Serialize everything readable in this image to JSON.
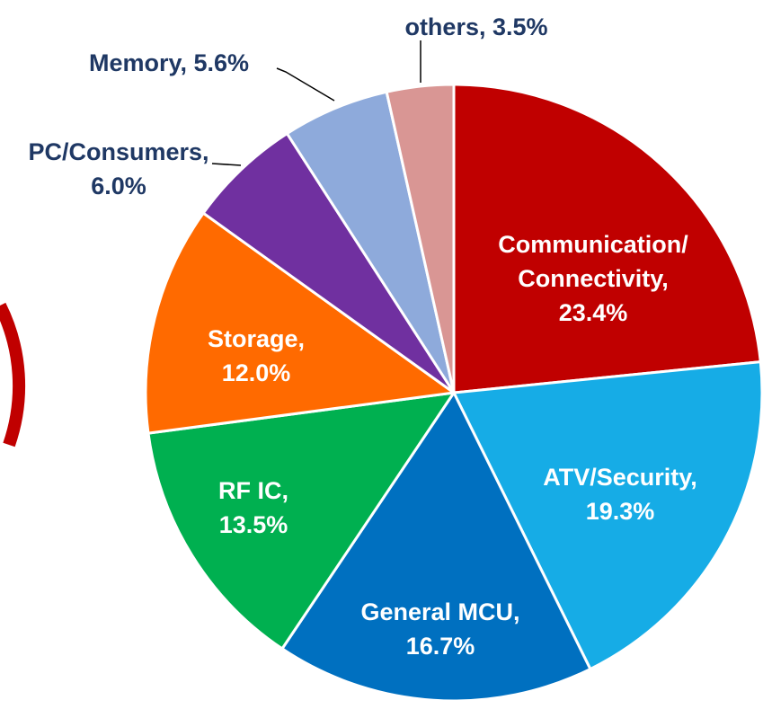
{
  "chart_data": {
    "type": "pie",
    "categories": [
      "Communication/ Connectivity,",
      "ATV/Security,",
      "General MCU,",
      "RF IC,",
      "Storage,",
      "PC/Consumers,",
      "Memory,",
      "others,"
    ],
    "values": [
      23.4,
      19.3,
      16.7,
      13.5,
      12.0,
      6.0,
      5.6,
      3.5
    ],
    "value_labels": [
      "23.4%",
      "19.3%",
      "16.7%",
      "13.5%",
      "12.0%",
      "6.0%",
      "5.6%",
      "3.5%"
    ],
    "colors": [
      "#c00000",
      "#16ace6",
      "#0070c0",
      "#00b050",
      "#ff6a00",
      "#7030a0",
      "#8eaadb",
      "#d99694"
    ]
  }
}
